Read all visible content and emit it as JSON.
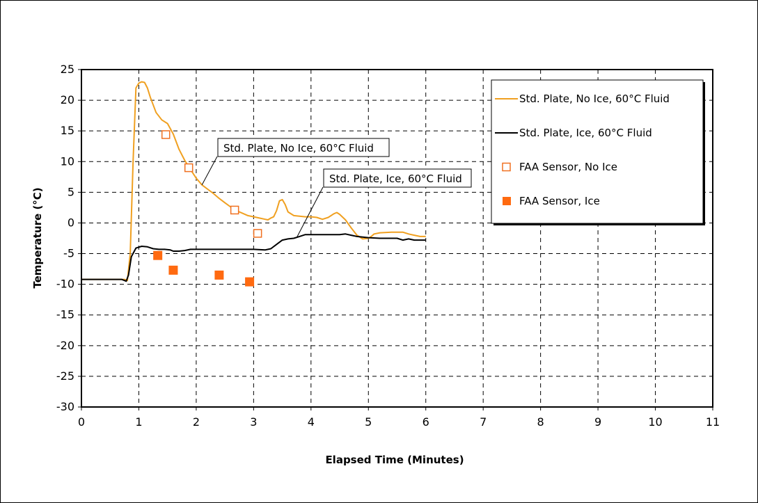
{
  "chart_data": {
    "type": "line",
    "title": "",
    "xlabel": "Elapsed Time (Minutes)",
    "ylabel": "Temperature (°C)",
    "xlim": [
      0,
      11
    ],
    "ylim": [
      -30,
      25
    ],
    "xticks": [
      "0",
      "1",
      "2",
      "3",
      "4",
      "5",
      "6",
      "7",
      "8",
      "9",
      "10",
      "11"
    ],
    "yticks": [
      "25",
      "20",
      "15",
      "10",
      "5",
      "0",
      "-5",
      "-10",
      "-15",
      "-20",
      "-25",
      "-30"
    ],
    "grid": true,
    "legend_position": "top-right",
    "series": [
      {
        "name": "Std. Plate, No Ice, 60°C Fluid",
        "kind": "line",
        "color": "#f0a020",
        "points": [
          [
            0,
            -9.2
          ],
          [
            0.75,
            -9.2
          ],
          [
            0.8,
            -9.4
          ],
          [
            0.85,
            -5
          ],
          [
            0.9,
            10
          ],
          [
            0.95,
            22
          ],
          [
            1.0,
            22.8
          ],
          [
            1.05,
            23.0
          ],
          [
            1.1,
            22.9
          ],
          [
            1.15,
            22.0
          ],
          [
            1.2,
            20.5
          ],
          [
            1.3,
            18.0
          ],
          [
            1.4,
            16.8
          ],
          [
            1.5,
            16.2
          ],
          [
            1.6,
            14.5
          ],
          [
            1.7,
            12.0
          ],
          [
            1.8,
            10.2
          ],
          [
            1.9,
            8.7
          ],
          [
            2.0,
            7.3
          ],
          [
            2.1,
            6.2
          ],
          [
            2.2,
            5.5
          ],
          [
            2.3,
            4.8
          ],
          [
            2.4,
            4.0
          ],
          [
            2.5,
            3.3
          ],
          [
            2.6,
            2.6
          ],
          [
            2.7,
            2.0
          ],
          [
            2.8,
            1.6
          ],
          [
            2.9,
            1.2
          ],
          [
            3.0,
            1.0
          ],
          [
            3.1,
            0.8
          ],
          [
            3.2,
            0.6
          ],
          [
            3.25,
            0.5
          ],
          [
            3.3,
            0.8
          ],
          [
            3.35,
            1.0
          ],
          [
            3.4,
            2.0
          ],
          [
            3.45,
            3.6
          ],
          [
            3.5,
            3.8
          ],
          [
            3.55,
            3.0
          ],
          [
            3.6,
            1.8
          ],
          [
            3.7,
            1.2
          ],
          [
            3.8,
            1.1
          ],
          [
            3.9,
            1.0
          ],
          [
            4.0,
            1.0
          ],
          [
            4.1,
            0.9
          ],
          [
            4.2,
            0.6
          ],
          [
            4.3,
            0.9
          ],
          [
            4.4,
            1.5
          ],
          [
            4.45,
            1.7
          ],
          [
            4.5,
            1.4
          ],
          [
            4.6,
            0.5
          ],
          [
            4.7,
            -0.8
          ],
          [
            4.8,
            -2.0
          ],
          [
            4.9,
            -2.6
          ],
          [
            5.0,
            -2.5
          ],
          [
            5.05,
            -2.2
          ],
          [
            5.1,
            -1.8
          ],
          [
            5.2,
            -1.6
          ],
          [
            5.4,
            -1.5
          ],
          [
            5.6,
            -1.5
          ],
          [
            5.7,
            -1.8
          ],
          [
            5.8,
            -2.0
          ],
          [
            5.9,
            -2.2
          ],
          [
            6.0,
            -2.2
          ]
        ]
      },
      {
        "name": "Std. Plate, Ice, 60°C Fluid",
        "kind": "line",
        "color": "#000000",
        "points": [
          [
            0,
            -9.2
          ],
          [
            0.7,
            -9.2
          ],
          [
            0.78,
            -9.5
          ],
          [
            0.82,
            -8.5
          ],
          [
            0.87,
            -5.5
          ],
          [
            0.95,
            -4.1
          ],
          [
            1.05,
            -3.8
          ],
          [
            1.15,
            -3.9
          ],
          [
            1.25,
            -4.2
          ],
          [
            1.35,
            -4.3
          ],
          [
            1.45,
            -4.3
          ],
          [
            1.55,
            -4.4
          ],
          [
            1.6,
            -4.6
          ],
          [
            1.7,
            -4.6
          ],
          [
            1.8,
            -4.5
          ],
          [
            1.9,
            -4.3
          ],
          [
            2.0,
            -4.3
          ],
          [
            2.5,
            -4.3
          ],
          [
            3.0,
            -4.3
          ],
          [
            3.2,
            -4.4
          ],
          [
            3.3,
            -4.2
          ],
          [
            3.4,
            -3.5
          ],
          [
            3.5,
            -2.8
          ],
          [
            3.6,
            -2.6
          ],
          [
            3.7,
            -2.5
          ],
          [
            3.8,
            -2.2
          ],
          [
            3.9,
            -1.9
          ],
          [
            4.0,
            -1.9
          ],
          [
            4.2,
            -1.9
          ],
          [
            4.5,
            -1.9
          ],
          [
            4.6,
            -1.8
          ],
          [
            4.7,
            -2.0
          ],
          [
            4.8,
            -2.2
          ],
          [
            4.9,
            -2.3
          ],
          [
            5.0,
            -2.4
          ],
          [
            5.2,
            -2.5
          ],
          [
            5.5,
            -2.5
          ],
          [
            5.6,
            -2.8
          ],
          [
            5.7,
            -2.6
          ],
          [
            5.8,
            -2.8
          ],
          [
            6.0,
            -2.8
          ]
        ]
      },
      {
        "name": "FAA Sensor, No Ice",
        "kind": "scatter",
        "marker": "open-square",
        "color": "#f07020",
        "points": [
          [
            1.47,
            14.4
          ],
          [
            1.87,
            9.0
          ],
          [
            2.67,
            2.1
          ],
          [
            3.07,
            -1.7
          ]
        ]
      },
      {
        "name": "FAA Sensor, Ice",
        "kind": "scatter",
        "marker": "filled-square",
        "color": "#ff6a10",
        "points": [
          [
            1.33,
            -5.3
          ],
          [
            1.6,
            -7.7
          ],
          [
            2.4,
            -8.5
          ],
          [
            2.93,
            -9.6
          ]
        ]
      }
    ],
    "annotations": [
      {
        "text": "Std. Plate, No Ice, 60°C Fluid",
        "target": [
          2.1,
          6.2
        ]
      },
      {
        "text": "Std. Plate, Ice, 60°C Fluid",
        "target": [
          3.75,
          -2.4
        ]
      }
    ]
  }
}
